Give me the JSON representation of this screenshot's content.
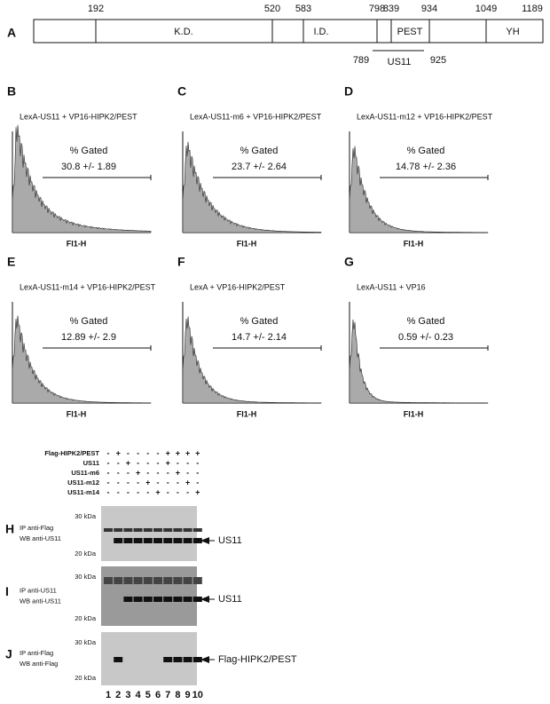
{
  "panel_a": {
    "label": "A",
    "positions": [
      192,
      520,
      583,
      798,
      839,
      934,
      1049,
      1189
    ],
    "domains": [
      "K.D.",
      "I.D.",
      "PEST",
      "YH"
    ],
    "us11": {
      "start": 789,
      "label": "US11",
      "end": 925
    }
  },
  "flow_panels": [
    {
      "label": "B",
      "title": "LexA-US11 + VP16-HIPK2/PEST",
      "gate_title": "% Gated",
      "gated": "30.8 +/- 1.89",
      "x_label": "Fl1-H"
    },
    {
      "label": "C",
      "title": "LexA-US11-m6  + VP16-HIPK2/PEST",
      "gate_title": "% Gated",
      "gated": "23.7 +/- 2.64",
      "x_label": "Fl1-H"
    },
    {
      "label": "D",
      "title": "LexA-US11-m12 + VP16-HIPK2/PEST",
      "gate_title": "% Gated",
      "gated": "14.78 +/- 2.36",
      "x_label": "Fl1-H"
    },
    {
      "label": "E",
      "title": "LexA-US11-m14 + VP16-HIPK2/PEST",
      "gate_title": "% Gated",
      "gated": "12.89 +/- 2.9",
      "x_label": "Fl1-H"
    },
    {
      "label": "F",
      "title": "LexA + VP16-HIPK2/PEST",
      "gate_title": "% Gated",
      "gated": "14.7 +/- 2.14",
      "x_label": "Fl1-H"
    },
    {
      "label": "G",
      "title": "LexA-US11 + VP16",
      "gate_title": "% Gated",
      "gated": "0.59 +/- 0.23",
      "x_label": "Fl1-H"
    }
  ],
  "western": {
    "conditions": [
      {
        "name": "Flag-HIPK2/PEST",
        "lanes": [
          "-",
          "+",
          "-",
          "-",
          "-",
          "-",
          "+",
          "+",
          "+",
          "+"
        ]
      },
      {
        "name": "US11",
        "lanes": [
          "-",
          "-",
          "+",
          "-",
          "-",
          "-",
          "+",
          "-",
          "-",
          "-"
        ]
      },
      {
        "name": "US11-m6",
        "lanes": [
          "-",
          "-",
          "-",
          "+",
          "-",
          "-",
          "-",
          "+",
          "-",
          "-"
        ]
      },
      {
        "name": "US11-m12",
        "lanes": [
          "-",
          "-",
          "-",
          "-",
          "+",
          "-",
          "-",
          "-",
          "+",
          "-"
        ]
      },
      {
        "name": "US11-m14",
        "lanes": [
          "-",
          "-",
          "-",
          "-",
          "-",
          "+",
          "-",
          "-",
          "-",
          "+"
        ]
      }
    ],
    "blots": [
      {
        "label": "H",
        "ip": "IP anti-Flag",
        "wb": "WB anti-US11",
        "markers": [
          "30 kDa",
          "20 kDa"
        ],
        "band": "US11"
      },
      {
        "label": "I",
        "ip": "IP anti-US11",
        "wb": "WB anti-US11",
        "markers": [
          "30 kDa",
          "20 kDa"
        ],
        "band": "US11"
      },
      {
        "label": "J",
        "ip": "IP anti-Flag",
        "wb": "WB anti-Flag",
        "markers": [
          "30 kDa",
          "20 kDa"
        ],
        "band": "Flag-HIPK2/PEST"
      }
    ],
    "lanes": [
      1,
      2,
      3,
      4,
      5,
      6,
      7,
      8,
      9,
      10
    ]
  }
}
